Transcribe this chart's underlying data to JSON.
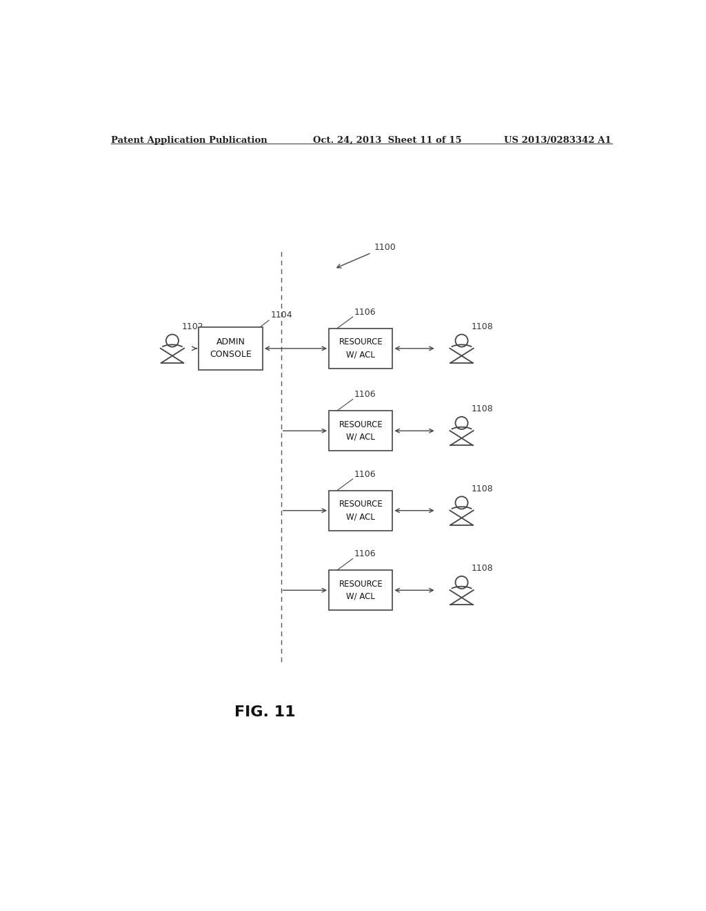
{
  "bg_color": "#ffffff",
  "header_left": "Patent Application Publication",
  "header_mid": "Oct. 24, 2013  Sheet 11 of 15",
  "header_right": "US 2013/0283342 A1",
  "fig_label": "FIG. 11",
  "diagram_label": "1100",
  "admin_label": "1104",
  "admin_text": "ADMIN\nCONSOLE",
  "user_left_label": "1102",
  "resource_label": "1106",
  "resource_text": "RESOURCE\nW/ ACL",
  "user_right_label": "1108",
  "color": "#444444"
}
